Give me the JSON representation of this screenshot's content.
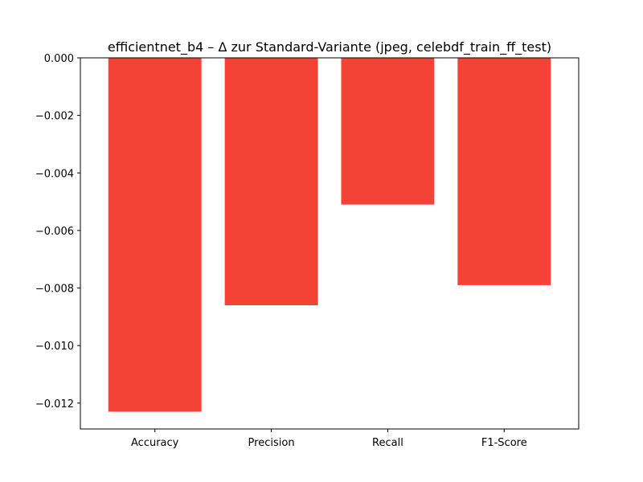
{
  "chart_data": {
    "type": "bar",
    "title": "efficientnet_b4 – Δ zur Standard-Variante (jpeg, celebdf_train_ff_test)",
    "xlabel": "",
    "ylabel": "",
    "categories": [
      "Accuracy",
      "Precision",
      "Recall",
      "F1-Score"
    ],
    "values": [
      -0.0123,
      -0.0086,
      -0.0051,
      -0.0079
    ],
    "ylim": [
      -0.0129,
      0.0
    ],
    "yticks": [
      0.0,
      -0.002,
      -0.004,
      -0.006,
      -0.008,
      -0.01,
      -0.012
    ],
    "ytick_labels": [
      "0.000",
      "−0.002",
      "−0.004",
      "−0.006",
      "−0.008",
      "−0.010",
      "−0.012"
    ],
    "bar_color": "#f44336",
    "grid": false,
    "legend": "none"
  }
}
